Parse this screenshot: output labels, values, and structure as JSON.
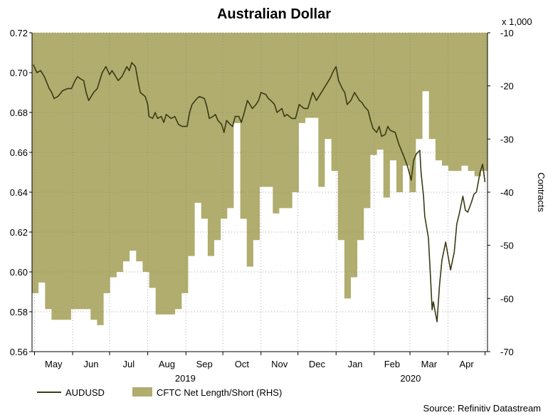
{
  "chart_data": {
    "type": "line",
    "title": "Australian Dollar",
    "source": "Source: Refinitiv Datastream",
    "x_months": [
      "May",
      "Jun",
      "Jul",
      "Aug",
      "Sep",
      "Oct",
      "Nov",
      "Dec",
      "Jan",
      "Feb",
      "Mar",
      "Apr"
    ],
    "x_years": [
      "2019",
      "2020"
    ],
    "left_axis": {
      "ylim": [
        0.56,
        0.72
      ],
      "ticks": [
        "0.72",
        "0.70",
        "0.68",
        "0.66",
        "0.64",
        "0.62",
        "0.60",
        "0.58",
        "0.56"
      ]
    },
    "right_axis": {
      "unit": "x 1,000",
      "label": "Contracts",
      "ylim": [
        -70,
        -10
      ],
      "ticks": [
        "-10",
        "-20",
        "-30",
        "-40",
        "-50",
        "-60",
        "-70"
      ]
    },
    "grid": true,
    "legend_position": "bottom-left",
    "series": [
      {
        "name": "AUDUSD",
        "axis": "left",
        "color": "#3a3a14",
        "points": [
          [
            "2019-04-30",
            0.704
          ],
          [
            "2019-05-03",
            0.7
          ],
          [
            "2019-05-06",
            0.701
          ],
          [
            "2019-05-09",
            0.698
          ],
          [
            "2019-05-13",
            0.692
          ],
          [
            "2019-05-15",
            0.69
          ],
          [
            "2019-05-17",
            0.687
          ],
          [
            "2019-05-20",
            0.688
          ],
          [
            "2019-05-24",
            0.691
          ],
          [
            "2019-05-28",
            0.692
          ],
          [
            "2019-05-31",
            0.692
          ],
          [
            "2019-06-03",
            0.696
          ],
          [
            "2019-06-05",
            0.698
          ],
          [
            "2019-06-07",
            0.697
          ],
          [
            "2019-06-10",
            0.696
          ],
          [
            "2019-06-12",
            0.69
          ],
          [
            "2019-06-14",
            0.686
          ],
          [
            "2019-06-18",
            0.69
          ],
          [
            "2019-06-21",
            0.692
          ],
          [
            "2019-06-25",
            0.7
          ],
          [
            "2019-06-28",
            0.703
          ],
          [
            "2019-07-01",
            0.699
          ],
          [
            "2019-07-03",
            0.701
          ],
          [
            "2019-07-05",
            0.699
          ],
          [
            "2019-07-08",
            0.696
          ],
          [
            "2019-07-11",
            0.698
          ],
          [
            "2019-07-15",
            0.703
          ],
          [
            "2019-07-17",
            0.701
          ],
          [
            "2019-07-19",
            0.705
          ],
          [
            "2019-07-22",
            0.703
          ],
          [
            "2019-07-24",
            0.696
          ],
          [
            "2019-07-26",
            0.69
          ],
          [
            "2019-07-30",
            0.688
          ],
          [
            "2019-08-01",
            0.684
          ],
          [
            "2019-08-02",
            0.678
          ],
          [
            "2019-08-05",
            0.677
          ],
          [
            "2019-08-07",
            0.68
          ],
          [
            "2019-08-09",
            0.677
          ],
          [
            "2019-08-12",
            0.678
          ],
          [
            "2019-08-14",
            0.675
          ],
          [
            "2019-08-16",
            0.679
          ],
          [
            "2019-08-20",
            0.677
          ],
          [
            "2019-08-23",
            0.678
          ],
          [
            "2019-08-26",
            0.674
          ],
          [
            "2019-08-29",
            0.673
          ],
          [
            "2019-09-02",
            0.673
          ],
          [
            "2019-09-04",
            0.68
          ],
          [
            "2019-09-06",
            0.684
          ],
          [
            "2019-09-10",
            0.687
          ],
          [
            "2019-09-12",
            0.688
          ],
          [
            "2019-09-16",
            0.687
          ],
          [
            "2019-09-18",
            0.683
          ],
          [
            "2019-09-20",
            0.677
          ],
          [
            "2019-09-23",
            0.678
          ],
          [
            "2019-09-25",
            0.679
          ],
          [
            "2019-09-27",
            0.676
          ],
          [
            "2019-09-30",
            0.674
          ],
          [
            "2019-10-02",
            0.67
          ],
          [
            "2019-10-04",
            0.676
          ],
          [
            "2019-10-07",
            0.674
          ],
          [
            "2019-10-09",
            0.673
          ],
          [
            "2019-10-11",
            0.678
          ],
          [
            "2019-10-14",
            0.678
          ],
          [
            "2019-10-16",
            0.675
          ],
          [
            "2019-10-18",
            0.679
          ],
          [
            "2019-10-21",
            0.686
          ],
          [
            "2019-10-23",
            0.684
          ],
          [
            "2019-10-25",
            0.682
          ],
          [
            "2019-10-28",
            0.684
          ],
          [
            "2019-10-30",
            0.686
          ],
          [
            "2019-11-01",
            0.69
          ],
          [
            "2019-11-05",
            0.689
          ],
          [
            "2019-11-07",
            0.687
          ],
          [
            "2019-11-09",
            0.686
          ],
          [
            "2019-11-12",
            0.684
          ],
          [
            "2019-11-14",
            0.68
          ],
          [
            "2019-11-18",
            0.682
          ],
          [
            "2019-11-20",
            0.678
          ],
          [
            "2019-11-22",
            0.679
          ],
          [
            "2019-11-26",
            0.677
          ],
          [
            "2019-11-29",
            0.677
          ],
          [
            "2019-12-02",
            0.684
          ],
          [
            "2019-12-04",
            0.683
          ],
          [
            "2019-12-06",
            0.682
          ],
          [
            "2019-12-09",
            0.682
          ],
          [
            "2019-12-11",
            0.686
          ],
          [
            "2019-12-13",
            0.69
          ],
          [
            "2019-12-16",
            0.686
          ],
          [
            "2019-12-18",
            0.688
          ],
          [
            "2019-12-20",
            0.69
          ],
          [
            "2019-12-24",
            0.694
          ],
          [
            "2019-12-27",
            0.697
          ],
          [
            "2019-12-30",
            0.701
          ],
          [
            "2020-01-01",
            0.703
          ],
          [
            "2020-01-03",
            0.696
          ],
          [
            "2020-01-06",
            0.692
          ],
          [
            "2020-01-08",
            0.69
          ],
          [
            "2020-01-10",
            0.684
          ],
          [
            "2020-01-13",
            0.686
          ],
          [
            "2020-01-16",
            0.69
          ],
          [
            "2020-01-20",
            0.686
          ],
          [
            "2020-01-22",
            0.685
          ],
          [
            "2020-01-24",
            0.683
          ],
          [
            "2020-01-27",
            0.681
          ],
          [
            "2020-01-29",
            0.676
          ],
          [
            "2020-01-31",
            0.672
          ],
          [
            "2020-02-03",
            0.67
          ],
          [
            "2020-02-05",
            0.673
          ],
          [
            "2020-02-07",
            0.668
          ],
          [
            "2020-02-10",
            0.669
          ],
          [
            "2020-02-12",
            0.673
          ],
          [
            "2020-02-14",
            0.671
          ],
          [
            "2020-02-18",
            0.67
          ],
          [
            "2020-02-21",
            0.664
          ],
          [
            "2020-02-25",
            0.658
          ],
          [
            "2020-02-28",
            0.653
          ],
          [
            "2020-03-02",
            0.646
          ],
          [
            "2020-03-04",
            0.656
          ],
          [
            "2020-03-06",
            0.659
          ],
          [
            "2020-03-09",
            0.661
          ],
          [
            "2020-03-10",
            0.65
          ],
          [
            "2020-03-12",
            0.638
          ],
          [
            "2020-03-13",
            0.628
          ],
          [
            "2020-03-16",
            0.617
          ],
          [
            "2020-03-18",
            0.594
          ],
          [
            "2020-03-19",
            0.581
          ],
          [
            "2020-03-20",
            0.585
          ],
          [
            "2020-03-23",
            0.575
          ],
          [
            "2020-03-25",
            0.593
          ],
          [
            "2020-03-27",
            0.606
          ],
          [
            "2020-03-30",
            0.615
          ],
          [
            "2020-04-01",
            0.608
          ],
          [
            "2020-04-03",
            0.601
          ],
          [
            "2020-04-06",
            0.61
          ],
          [
            "2020-04-08",
            0.624
          ],
          [
            "2020-04-10",
            0.629
          ],
          [
            "2020-04-13",
            0.638
          ],
          [
            "2020-04-15",
            0.631
          ],
          [
            "2020-04-17",
            0.63
          ],
          [
            "2020-04-20",
            0.635
          ],
          [
            "2020-04-22",
            0.639
          ],
          [
            "2020-04-24",
            0.64
          ],
          [
            "2020-04-27",
            0.65
          ],
          [
            "2020-04-29",
            0.654
          ],
          [
            "2020-05-01",
            0.645
          ]
        ]
      },
      {
        "name": "CFTC Net Length/Short (RHS)",
        "axis": "right",
        "type": "area",
        "color": "#b0ad6e",
        "weekly_values": [
          -59,
          -57,
          -62,
          -64,
          -64,
          -64,
          -62,
          -62,
          -62,
          -64,
          -65,
          -59,
          -56,
          -55,
          -53,
          -51,
          -53,
          -55,
          -58,
          -63,
          -63,
          -63,
          -62,
          -59,
          -52,
          -42,
          -45,
          -52,
          -49,
          -45,
          -43,
          -27,
          -45,
          -54,
          -49,
          -39,
          -39,
          -44,
          -43,
          -43,
          -40,
          -27,
          -26,
          -26,
          -39,
          -30,
          -36,
          -49,
          -60,
          -56,
          -49,
          -43,
          -33,
          -32,
          -41,
          -34,
          -40,
          -35,
          -40,
          -30,
          -21,
          -30,
          -34,
          -35,
          -36,
          -36,
          -35,
          -36,
          -37,
          -36
        ]
      }
    ]
  },
  "legend": {
    "series1": "AUDUSD",
    "series2": "CFTC Net Length/Short (RHS)"
  }
}
